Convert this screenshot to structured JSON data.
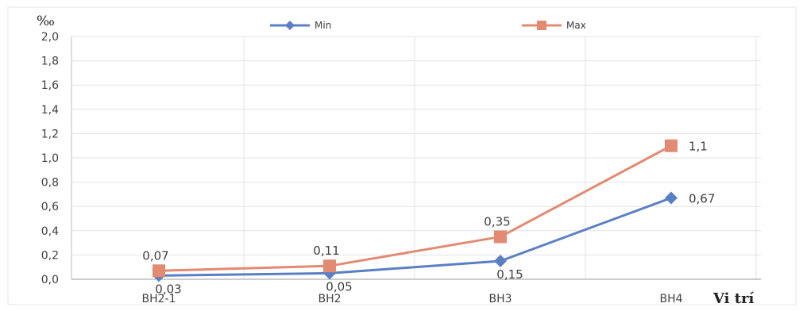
{
  "chart_data": {
    "type": "line",
    "categories": [
      "BH2-1",
      "BH2",
      "BH3",
      "BH4"
    ],
    "series": [
      {
        "name": "Min",
        "values": [
          0.03,
          0.05,
          0.15,
          0.67
        ],
        "labels": [
          "0,03",
          "0,05",
          "0,15",
          "0,67"
        ],
        "color": "#5b7fc4",
        "marker": "diamond"
      },
      {
        "name": "Max",
        "values": [
          0.07,
          0.11,
          0.35,
          1.1
        ],
        "labels": [
          "0,07",
          "0,11",
          "0,35",
          "1,1"
        ],
        "color": "#e28a72",
        "marker": "square"
      }
    ],
    "ylabel": "‰",
    "xlabel": "Vi trí",
    "ylim": [
      0,
      2.0
    ],
    "yticks": [
      "0,0",
      "0,2",
      "0,4",
      "0,6",
      "0,8",
      "1,0",
      "1,2",
      "1,4",
      "1,6",
      "1,8",
      "2,0"
    ],
    "grid": true,
    "legend": "top"
  }
}
